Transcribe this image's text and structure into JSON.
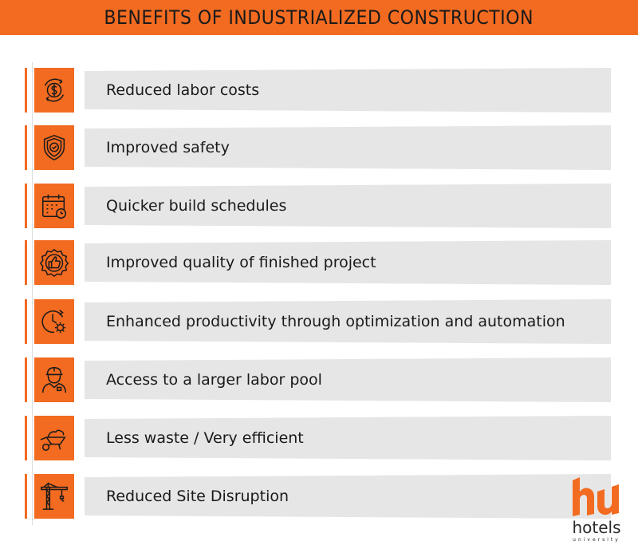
{
  "header": {
    "title": "BENEFITS OF INDUSTRIALIZED CONSTRUCTION"
  },
  "colors": {
    "accent": "#f26b21",
    "band": "#e6e6e6",
    "text": "#1a1a1a"
  },
  "benefits": [
    {
      "label": "Reduced labor costs",
      "icon": "dollar-cycle-icon"
    },
    {
      "label": "Improved safety",
      "icon": "safety-shield-icon"
    },
    {
      "label": "Quicker build schedules",
      "icon": "calendar-clock-icon"
    },
    {
      "label": "Improved quality of finished project",
      "icon": "thumbs-up-badge-icon"
    },
    {
      "label": "Enhanced productivity through optimization and automation",
      "icon": "clock-gear-icon"
    },
    {
      "label": "Access to a larger labor pool",
      "icon": "worker-icon"
    },
    {
      "label": "Less waste / Very efficient",
      "icon": "wheelbarrow-icon"
    },
    {
      "label": "Reduced Site Disruption",
      "icon": "tower-crane-icon"
    }
  ],
  "logo": {
    "name": "hotels",
    "subtitle": "university"
  }
}
